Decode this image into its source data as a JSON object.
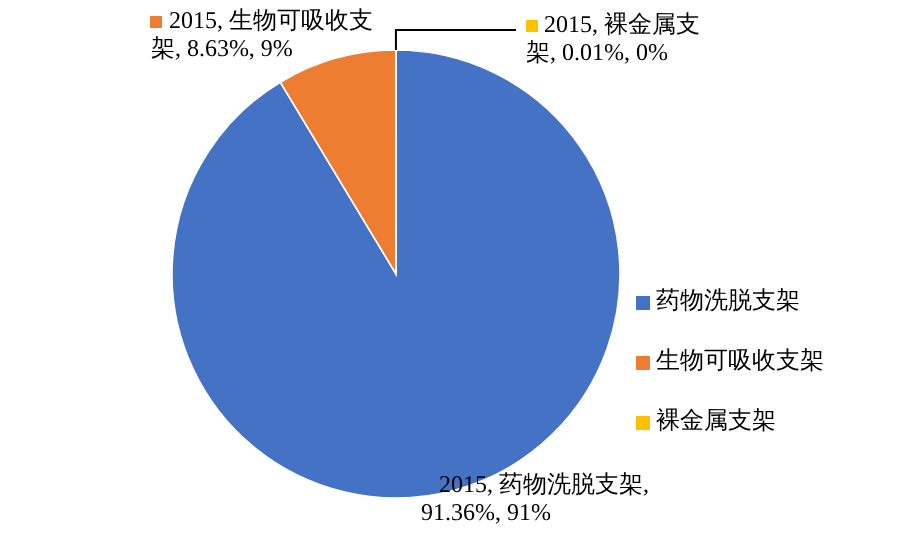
{
  "chart_data": {
    "type": "pie",
    "categories": [
      "药物洗脱支架",
      "生物可吸收支架",
      "裸金属支架"
    ],
    "values": [
      91.36,
      8.63,
      0.01
    ],
    "colors": [
      "#4472c4",
      "#ed7d31",
      "#ffc000"
    ],
    "value_labels": [
      "2015, 药物洗脱支架, 91.36%, 91%",
      "2015, 生物可吸收支架, 8.63%, 9%",
      "2015, 裸金属支架, 0.01%, 0%"
    ],
    "legend": "right"
  }
}
